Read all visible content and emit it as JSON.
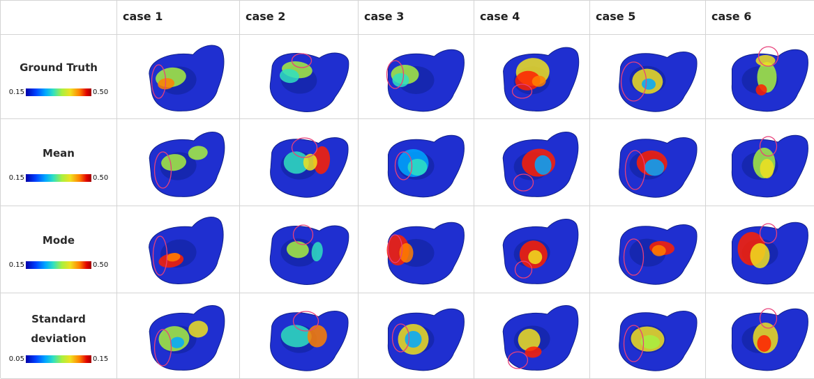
{
  "columns": [
    "",
    "case 1",
    "case 2",
    "case 3",
    "case 4",
    "case 5",
    "case 6"
  ],
  "rows": [
    {
      "label": "Ground Truth",
      "scale_min": "0.15",
      "scale_max": "0.50"
    },
    {
      "label": "Mean",
      "scale_min": "0.15",
      "scale_max": "0.50"
    },
    {
      "label": "Mode",
      "scale_min": "0.15",
      "scale_max": "0.50"
    },
    {
      "label": "Standard deviation",
      "scale_min": "0.05",
      "scale_max": "0.15"
    }
  ],
  "colors": {
    "mesh_base": "#1f2fd0",
    "highlight_circle": "#e8407a",
    "colormap": [
      "#0000a8",
      "#00a8ff",
      "#a8f040",
      "#f0e020",
      "#ff8000",
      "#e00000"
    ]
  }
}
